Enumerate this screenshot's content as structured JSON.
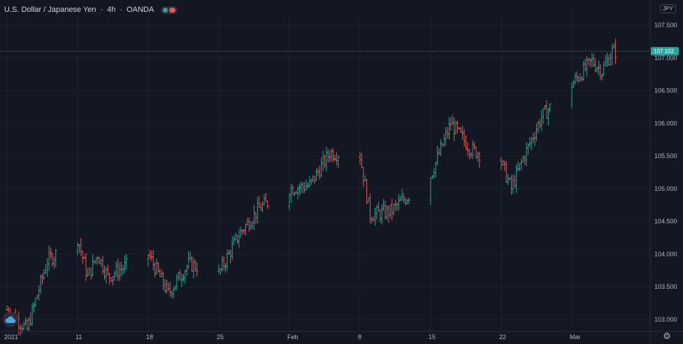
{
  "header": {
    "symbol": "U.S. Dollar / Japanese Yen",
    "interval": "4h",
    "exchange": "OANDA",
    "currency": "JPY"
  },
  "colors": {
    "background": "#131722",
    "up": "#26a69a",
    "down": "#ef5350",
    "grid": "#1e222d",
    "text": "#b2b5be"
  },
  "icons": {
    "logo": "cloud-icon",
    "settings": "gear-icon"
  },
  "chart_data": {
    "type": "ohlc",
    "title": "U.S. Dollar / Japanese Yen",
    "y_ticks": [
      103.0,
      103.5,
      104.0,
      104.5,
      105.0,
      105.5,
      106.0,
      106.5,
      107.0,
      107.5
    ],
    "y_tick_labels": [
      "103.000",
      "103.500",
      "104.000",
      "104.500",
      "105.000",
      "105.500",
      "106.000",
      "106.500",
      "107.000",
      "107.500"
    ],
    "ylim": [
      102.85,
      107.75
    ],
    "x_labels": [
      "2021",
      "11",
      "18",
      "25",
      "Feb",
      "8",
      "15",
      "22",
      "Mar"
    ],
    "last_price": 107.102,
    "last_price_label": "107.102",
    "grid": true,
    "trend": [
      {
        "date": "2021-01-04",
        "price": 103.15
      },
      {
        "date": "2021-01-06",
        "price": 102.85
      },
      {
        "date": "2021-01-08",
        "price": 103.9
      },
      {
        "date": "2021-01-11",
        "price": 104.25
      },
      {
        "date": "2021-01-12",
        "price": 103.65
      },
      {
        "date": "2021-01-13",
        "price": 104.0
      },
      {
        "date": "2021-01-14",
        "price": 103.65
      },
      {
        "date": "2021-01-15",
        "price": 103.75
      },
      {
        "date": "2021-01-18",
        "price": 104.0
      },
      {
        "date": "2021-01-20",
        "price": 103.4
      },
      {
        "date": "2021-01-22",
        "price": 103.85
      },
      {
        "date": "2021-01-25",
        "price": 103.7
      },
      {
        "date": "2021-01-27",
        "price": 104.3
      },
      {
        "date": "2021-01-29",
        "price": 104.7
      },
      {
        "date": "2021-02-01",
        "price": 105.0
      },
      {
        "date": "2021-02-03",
        "price": 105.05
      },
      {
        "date": "2021-02-05",
        "price": 105.55
      },
      {
        "date": "2021-02-08",
        "price": 105.5
      },
      {
        "date": "2021-02-09",
        "price": 104.6
      },
      {
        "date": "2021-02-11",
        "price": 104.65
      },
      {
        "date": "2021-02-15",
        "price": 105.2
      },
      {
        "date": "2021-02-17",
        "price": 106.0
      },
      {
        "date": "2021-02-19",
        "price": 105.6
      },
      {
        "date": "2021-02-22",
        "price": 105.4
      },
      {
        "date": "2021-02-23",
        "price": 105.0
      },
      {
        "date": "2021-02-24",
        "price": 105.4
      },
      {
        "date": "2021-02-26",
        "price": 106.1
      },
      {
        "date": "2021-03-01",
        "price": 106.6
      },
      {
        "date": "2021-03-03",
        "price": 106.95
      },
      {
        "date": "2021-03-04",
        "price": 106.8
      },
      {
        "date": "2021-03-05",
        "price": 107.1
      }
    ]
  }
}
